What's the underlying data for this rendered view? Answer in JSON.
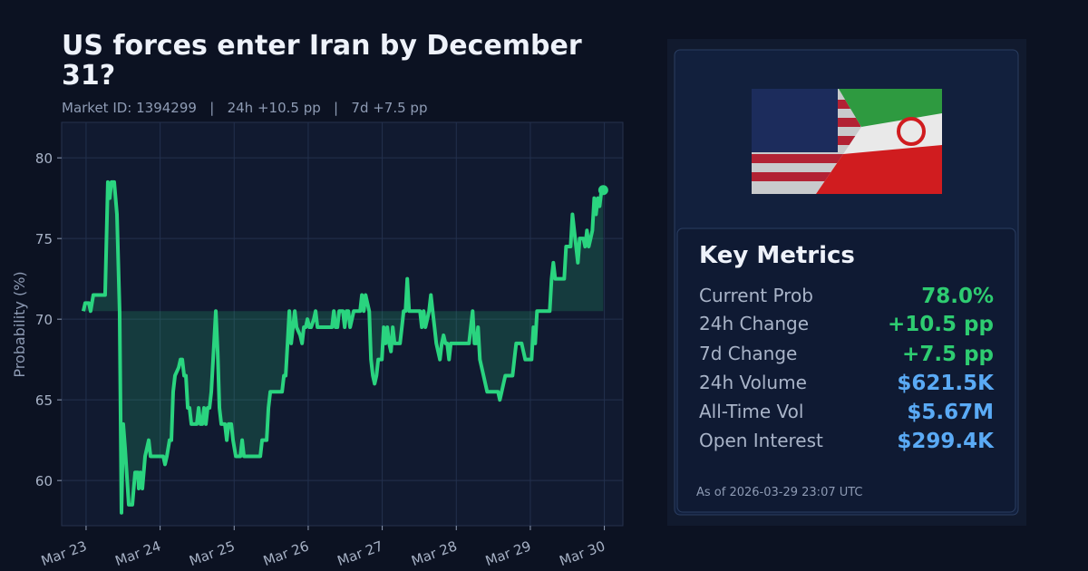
{
  "chart_data": {
    "type": "line",
    "title": "US forces enter Iran by December 31?",
    "subtitle": "Market ID: 1394299   |   24h +10.5 pp   |   7d +7.5 pp",
    "y_label": "Probability (%)",
    "color": "#2ad47f",
    "grid": true,
    "fill_to_first": true,
    "xlim": [
      -0.33,
      7.25
    ],
    "xticks": [
      {
        "value": 0,
        "label": "Mar 23"
      },
      {
        "value": 1,
        "label": "Mar 24"
      },
      {
        "value": 2,
        "label": "Mar 25"
      },
      {
        "value": 3,
        "label": "Mar 26"
      },
      {
        "value": 4,
        "label": "Mar 27"
      },
      {
        "value": 5,
        "label": "Mar 28"
      },
      {
        "value": 6,
        "label": "Mar 29"
      },
      {
        "value": 7,
        "label": "Mar 30"
      }
    ],
    "ylim": [
      57.2,
      82.2
    ],
    "yticks": [
      60,
      65,
      70,
      75,
      80
    ],
    "x": [
      -0.037,
      -0.012,
      0.037,
      0.061,
      0.098,
      0.257,
      0.294,
      0.319,
      0.343,
      0.38,
      0.417,
      0.453,
      0.478,
      0.502,
      0.527,
      0.576,
      0.625,
      0.662,
      0.699,
      0.711,
      0.735,
      0.76,
      0.797,
      0.846,
      0.87,
      1.042,
      1.066,
      1.091,
      1.127,
      1.152,
      1.176,
      1.201,
      1.25,
      1.275,
      1.299,
      1.324,
      1.348,
      1.373,
      1.397,
      1.422,
      1.495,
      1.52,
      1.544,
      1.569,
      1.593,
      1.618,
      1.642,
      1.667,
      1.691,
      1.728,
      1.752,
      1.777,
      1.801,
      1.826,
      1.875,
      1.9,
      1.924,
      1.961,
      1.985,
      2.022,
      2.083,
      2.108,
      2.132,
      2.353,
      2.377,
      2.439,
      2.463,
      2.488,
      2.647,
      2.672,
      2.696,
      2.721,
      2.745,
      2.77,
      2.794,
      2.819,
      2.843,
      2.892,
      2.917,
      2.941,
      2.966,
      2.99,
      3.015,
      3.039,
      3.076,
      3.1,
      3.125,
      3.321,
      3.346,
      3.37,
      3.395,
      3.419,
      3.468,
      3.493,
      3.517,
      3.542,
      3.566,
      3.615,
      3.701,
      3.725,
      3.75,
      3.775,
      3.799,
      3.824,
      3.848,
      3.873,
      3.897,
      3.922,
      3.946,
      3.995,
      4.02,
      4.044,
      4.069,
      4.093,
      4.118,
      4.142,
      4.167,
      4.24,
      4.265,
      4.289,
      4.314,
      4.338,
      4.363,
      4.51,
      4.534,
      4.559,
      4.583,
      4.608,
      4.632,
      4.657,
      4.681,
      4.706,
      4.73,
      4.779,
      4.804,
      4.828,
      4.853,
      4.877,
      4.902,
      4.926,
      5.172,
      5.196,
      5.221,
      5.245,
      5.27,
      5.294,
      5.319,
      5.368,
      5.417,
      5.564,
      5.588,
      5.613,
      5.662,
      5.76,
      5.784,
      5.809,
      5.882,
      5.931,
      6.017,
      6.042,
      6.066,
      6.091,
      6.262,
      6.287,
      6.311,
      6.336,
      6.458,
      6.483,
      6.544,
      6.569,
      6.593,
      6.618,
      6.642,
      6.667,
      6.716,
      6.74,
      6.765,
      6.789,
      6.814,
      6.838,
      6.863,
      6.887,
      6.912,
      6.936,
      6.961,
      6.985
    ],
    "values": [
      70.5,
      71.0,
      71.0,
      70.5,
      71.5,
      71.5,
      78.5,
      77.5,
      78.5,
      78.5,
      76.5,
      70.5,
      58.0,
      63.5,
      62.0,
      58.5,
      58.5,
      60.5,
      60.5,
      59.5,
      60.5,
      59.5,
      61.5,
      62.5,
      61.5,
      61.5,
      61.0,
      61.5,
      62.5,
      62.5,
      65.5,
      66.5,
      67.0,
      67.5,
      67.5,
      66.5,
      66.5,
      64.5,
      64.5,
      63.5,
      63.5,
      64.5,
      63.5,
      63.5,
      64.5,
      63.5,
      64.5,
      64.5,
      65.5,
      68.5,
      70.5,
      68.0,
      64.5,
      63.5,
      63.5,
      62.5,
      63.5,
      63.5,
      62.5,
      61.5,
      61.5,
      62.5,
      61.5,
      61.5,
      62.5,
      62.5,
      64.5,
      65.5,
      65.5,
      66.5,
      66.5,
      68.5,
      70.5,
      68.5,
      69.5,
      70.5,
      69.5,
      69.0,
      68.5,
      69.5,
      69.5,
      70.0,
      69.5,
      69.5,
      70.0,
      70.5,
      69.5,
      69.5,
      70.5,
      69.5,
      69.5,
      70.5,
      70.5,
      69.5,
      70.5,
      70.5,
      69.5,
      70.5,
      70.5,
      71.5,
      70.5,
      71.5,
      71.0,
      70.5,
      67.5,
      66.5,
      66.0,
      66.5,
      67.5,
      67.5,
      69.5,
      68.5,
      69.5,
      68.5,
      68.0,
      69.5,
      68.5,
      68.5,
      69.5,
      70.5,
      70.5,
      72.5,
      70.5,
      70.5,
      69.5,
      70.5,
      69.5,
      70.0,
      70.5,
      71.5,
      70.5,
      69.5,
      68.5,
      67.5,
      68.5,
      69.0,
      68.5,
      68.5,
      67.5,
      68.5,
      68.5,
      69.5,
      70.5,
      68.5,
      68.5,
      69.5,
      67.5,
      66.5,
      65.5,
      65.5,
      65.0,
      65.5,
      66.5,
      66.5,
      67.5,
      68.5,
      68.5,
      67.5,
      67.5,
      69.5,
      68.5,
      70.5,
      70.5,
      72.5,
      73.5,
      72.5,
      72.5,
      74.5,
      74.5,
      76.5,
      75.5,
      74.5,
      73.5,
      75.0,
      75.0,
      74.5,
      75.5,
      74.5,
      75.0,
      75.5,
      77.5,
      76.5,
      77.5,
      77.0,
      78.0,
      78.0
    ]
  },
  "panel": {
    "heading": "Key Metrics",
    "metrics": [
      {
        "label": "Current Prob",
        "value": "78.0%",
        "color": "#2ecc71"
      },
      {
        "label": "24h Change",
        "value": "+10.5 pp",
        "color": "#2ecc71"
      },
      {
        "label": "7d Change",
        "value": "+7.5 pp",
        "color": "#2ecc71"
      },
      {
        "label": "24h Volume",
        "value": "$621.5K",
        "color": "#5aaaf5"
      },
      {
        "label": "All-Time Vol",
        "value": "$5.67M",
        "color": "#5aaaf5"
      },
      {
        "label": "Open Interest",
        "value": "$299.4K",
        "color": "#5aaaf5"
      }
    ],
    "footer": "As of 2026-03-29 23:07 UTC"
  }
}
